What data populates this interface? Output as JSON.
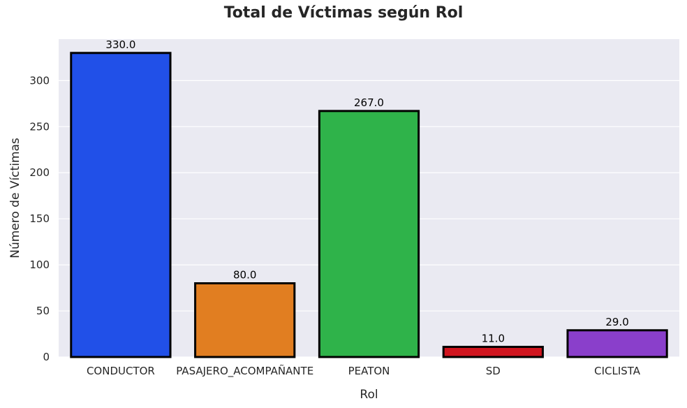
{
  "chart_data": {
    "type": "bar",
    "title": "Total de Víctimas según Rol",
    "xlabel": "Rol",
    "ylabel": "Número de Víctimas",
    "categories": [
      "CONDUCTOR",
      "PASAJERO_ACOMPAÑANTE",
      "PEATON",
      "SD",
      "CICLISTA"
    ],
    "values": [
      330,
      80,
      267,
      11,
      29
    ],
    "value_labels": [
      "330.0",
      "80.0",
      "267.0",
      "11.0",
      "29.0"
    ],
    "colors": [
      "#2150e8",
      "#e17e21",
      "#2fb34a",
      "#d0151f",
      "#8a3fcb"
    ],
    "ylim": [
      0,
      345
    ],
    "yticks": [
      0,
      50,
      100,
      150,
      200,
      250,
      300
    ],
    "grid": true,
    "background": "#eaeaf2",
    "bar_edge_color": "#000000"
  }
}
